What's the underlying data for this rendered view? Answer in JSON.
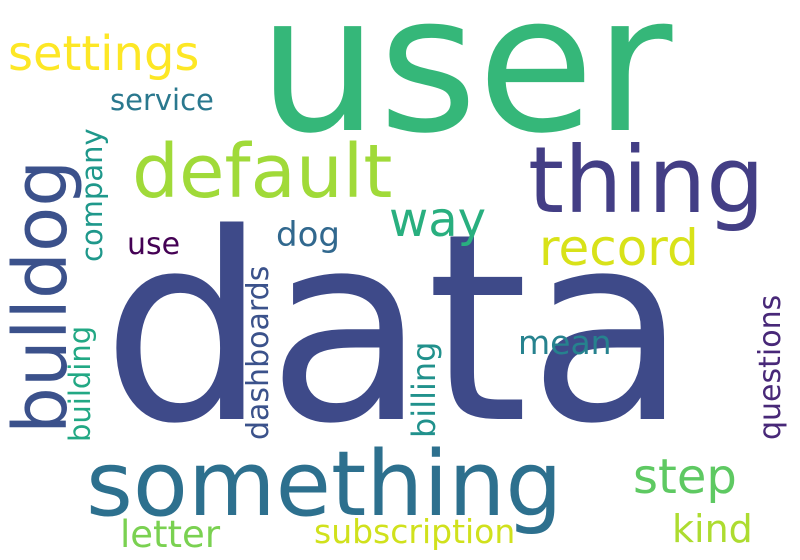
{
  "words": [
    {
      "text": "user",
      "color": "#35b779"
    },
    {
      "text": "data",
      "color": "#3e4a89"
    },
    {
      "text": "something",
      "color": "#2d708e"
    },
    {
      "text": "thing",
      "color": "#433e85"
    },
    {
      "text": "default",
      "color": "#a0da39"
    },
    {
      "text": "bulldog",
      "color": "#3b518b"
    },
    {
      "text": "settings",
      "color": "#fde725"
    },
    {
      "text": "record",
      "color": "#d8e219"
    },
    {
      "text": "way",
      "color": "#29af7f"
    },
    {
      "text": "step",
      "color": "#5ec962"
    },
    {
      "text": "kind",
      "color": "#addc30"
    },
    {
      "text": "letter",
      "color": "#7ad151"
    },
    {
      "text": "subscription",
      "color": "#d0e11c"
    },
    {
      "text": "service",
      "color": "#2a788e"
    },
    {
      "text": "company",
      "color": "#1f988b"
    },
    {
      "text": "building",
      "color": "#22a884"
    },
    {
      "text": "use",
      "color": "#440154"
    },
    {
      "text": "dog",
      "color": "#31688e"
    },
    {
      "text": "dashboards",
      "color": "#3b528b"
    },
    {
      "text": "billing",
      "color": "#21918c"
    },
    {
      "text": "mean",
      "color": "#26828e"
    },
    {
      "text": "questions",
      "color": "#482878"
    }
  ]
}
